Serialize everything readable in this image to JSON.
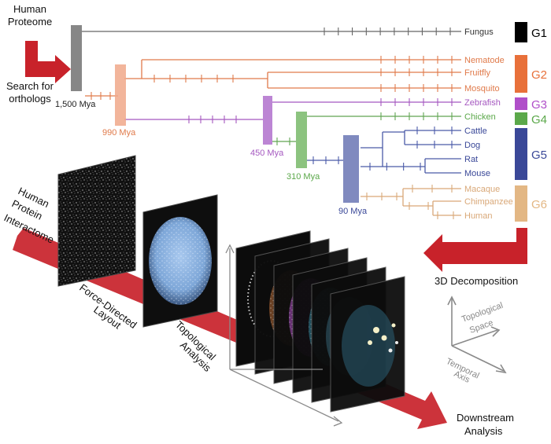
{
  "labels": {
    "human_proteome": [
      "Human",
      "Proteome"
    ],
    "search_orthologs": [
      "Search for",
      "orthologs"
    ],
    "human_interactome": [
      "Human",
      "Protein",
      "Interactome"
    ],
    "force_directed": [
      "Force-Directed",
      "Layout"
    ],
    "topological_analysis": [
      "Topological",
      "Analysis"
    ],
    "decomposition": "3D Decomposition",
    "downstream": [
      "Downstream",
      "Analysis"
    ],
    "topological_space": [
      "Topological",
      "Space"
    ],
    "temporal_axis": [
      "Temporal",
      "Axis"
    ]
  },
  "divergence_times": {
    "t1500": "1,500 Mya",
    "t990": "990 Mya",
    "t450": "450 Mya",
    "t310": "310 Mya",
    "t90": "90 Mya"
  },
  "species": [
    {
      "name": "Fungus",
      "group": "G1"
    },
    {
      "name": "Nematode",
      "group": "G2"
    },
    {
      "name": "Fruitfly",
      "group": "G2"
    },
    {
      "name": "Mosquito",
      "group": "G2"
    },
    {
      "name": "Zebrafish",
      "group": "G3"
    },
    {
      "name": "Chicken",
      "group": "G4"
    },
    {
      "name": "Cattle",
      "group": "G5"
    },
    {
      "name": "Dog",
      "group": "G5"
    },
    {
      "name": "Rat",
      "group": "G5"
    },
    {
      "name": "Mouse",
      "group": "G5"
    },
    {
      "name": "Macaque",
      "group": "G6"
    },
    {
      "name": "Chimpanzee",
      "group": "G6"
    },
    {
      "name": "Human",
      "group": "G6"
    }
  ],
  "groups": [
    {
      "label": "G1",
      "color": "#000000"
    },
    {
      "label": "G2",
      "color": "#e8703a"
    },
    {
      "label": "G3",
      "color": "#b04fc9"
    },
    {
      "label": "G4",
      "color": "#5ba84a"
    },
    {
      "label": "G5",
      "color": "#3a4898"
    },
    {
      "label": "G6",
      "color": "#e3b784"
    }
  ],
  "colors": {
    "arrow_red": "#c8222a",
    "g1": "#666666",
    "g2": "#e07a4a",
    "g3": "#a558c0",
    "g4": "#62a552",
    "g5": "#4a5aa8",
    "g6": "#d9a878",
    "axis_gray": "#8a8a8a"
  }
}
